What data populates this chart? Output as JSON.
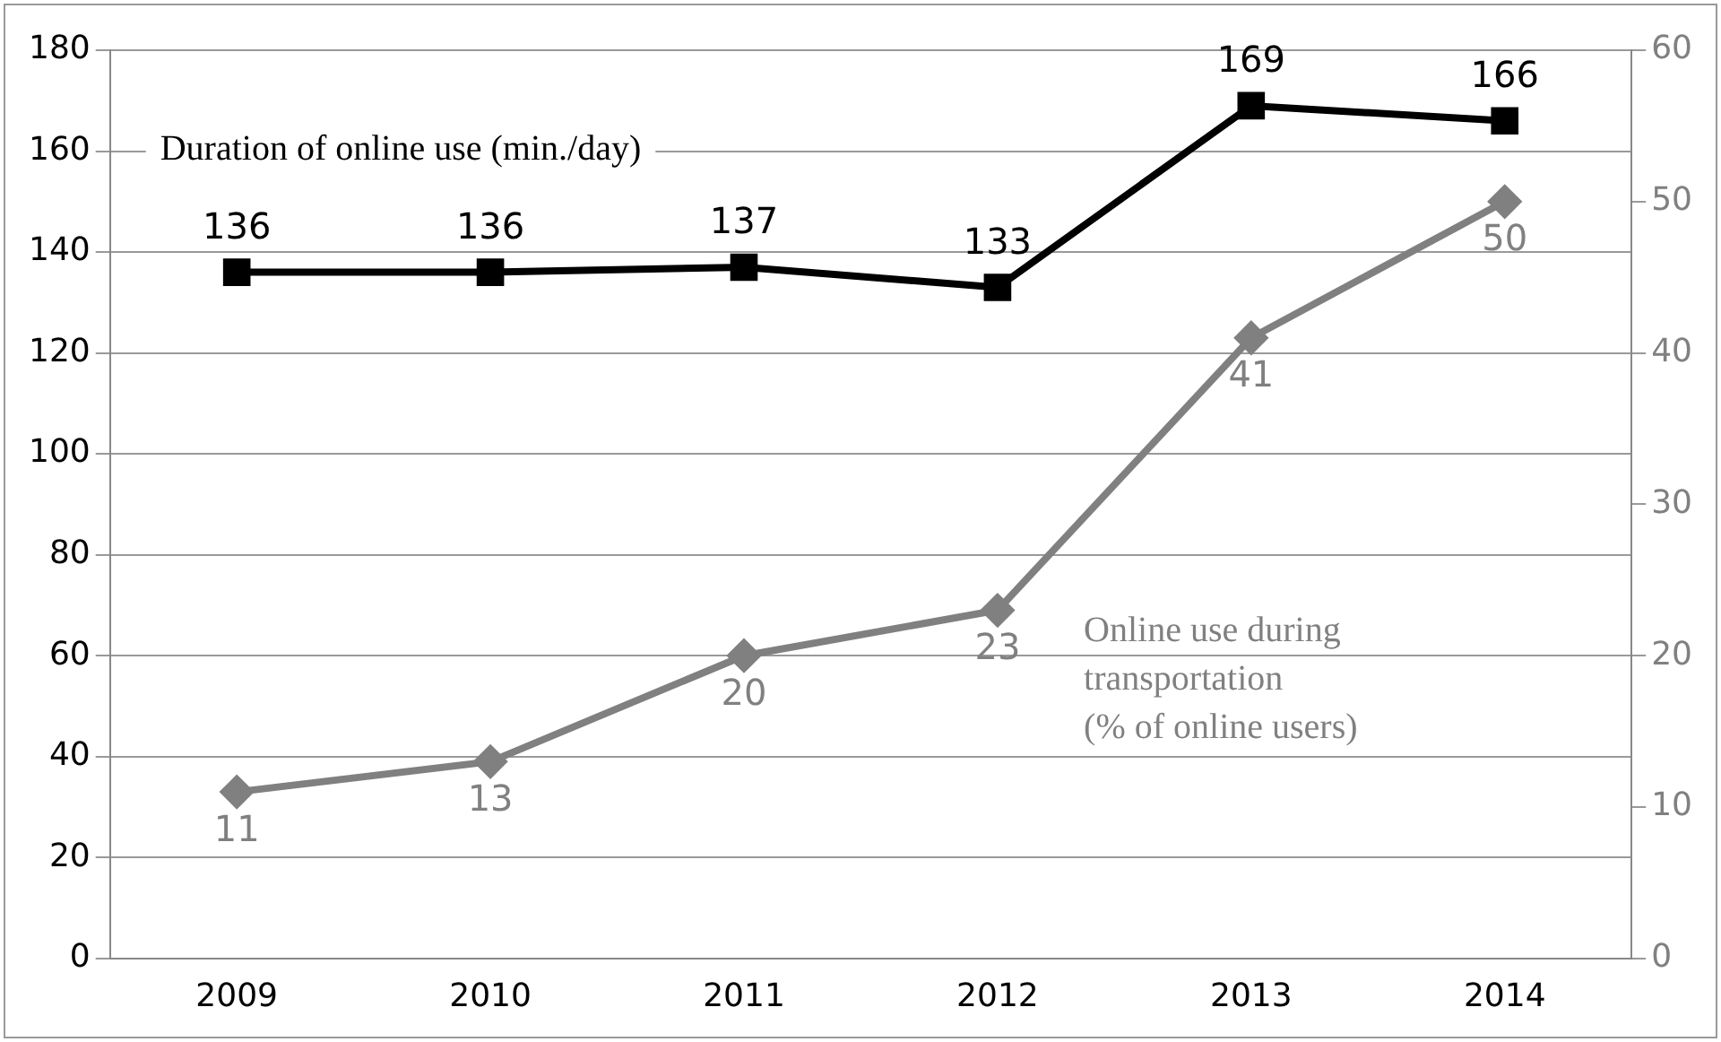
{
  "chart_data": {
    "type": "line",
    "categories": [
      "2009",
      "2010",
      "2011",
      "2012",
      "2013",
      "2014"
    ],
    "series": [
      {
        "name": "Duration of online use (min./day)",
        "color": "#000000",
        "marker": "square",
        "values": [
          136,
          136,
          137,
          133,
          169,
          166
        ]
      },
      {
        "name": "Online use during transportation (% of online users)",
        "color": "#808080",
        "marker": "diamond",
        "axis": "y2",
        "values": [
          11,
          13,
          20,
          23,
          41,
          50
        ]
      }
    ],
    "ylim": [
      0,
      180
    ],
    "yticks": [
      0,
      20,
      40,
      60,
      80,
      100,
      120,
      140,
      160,
      180
    ],
    "y2lim": [
      0,
      60
    ],
    "y2ticks": [
      0,
      10,
      20,
      30,
      40,
      50,
      60
    ],
    "data_labels": true,
    "grid": "y",
    "legend": false
  }
}
